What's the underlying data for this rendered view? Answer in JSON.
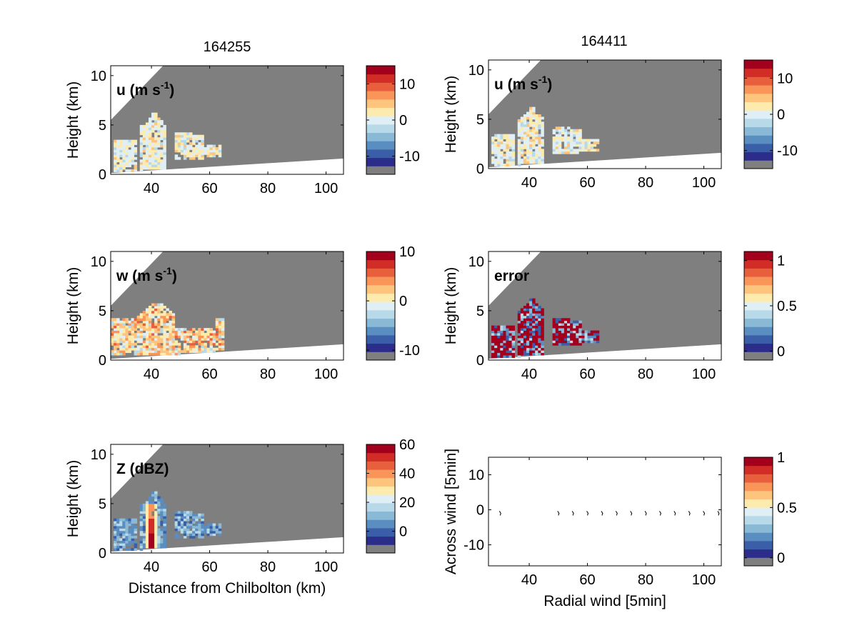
{
  "figure": {
    "column_titles": [
      "164255",
      "164411"
    ]
  },
  "colors": {
    "mask_gray": "#7f7f7f",
    "palette": [
      "#7f7f7f",
      "#2c2c8a",
      "#3a5ea8",
      "#5a8dc0",
      "#8ab9d6",
      "#b7d9e8",
      "#e0eff5",
      "#fdebad",
      "#fdc47e",
      "#f99558",
      "#e85f3d",
      "#d12d26",
      "#a2001d"
    ]
  },
  "chart_data": [
    {
      "id": "u-left",
      "type": "heatmap",
      "title": "164255",
      "label": "u (m s",
      "label_sup": "-1",
      "label_suffix": ")",
      "ylabel": "Height (km)",
      "xlabel": "",
      "xlim": [
        26,
        106
      ],
      "ylim": [
        0,
        11
      ],
      "xticks": [
        40,
        60,
        80,
        100
      ],
      "yticks": [
        0,
        5,
        10
      ],
      "colorbar": {
        "range": [
          -15,
          15
        ],
        "ticks": [
          10,
          0,
          -10
        ]
      },
      "field": "u",
      "frame": 0
    },
    {
      "id": "u-right",
      "type": "heatmap",
      "title": "164411",
      "label": "u (m s",
      "label_sup": "-1",
      "label_suffix": ")",
      "ylabel": "Height (km)",
      "xlabel": "",
      "xlim": [
        26,
        106
      ],
      "ylim": [
        0,
        11
      ],
      "xticks": [
        40,
        60,
        80,
        100
      ],
      "yticks": [
        0,
        5,
        10
      ],
      "colorbar": {
        "range": [
          -15,
          15
        ],
        "ticks": [
          10,
          0,
          -10
        ]
      },
      "field": "u",
      "frame": 1
    },
    {
      "id": "w-left",
      "type": "heatmap",
      "title": "",
      "label": "w (m s",
      "label_sup": "-1",
      "label_suffix": ")",
      "ylabel": "Height (km)",
      "xlabel": "",
      "xlim": [
        26,
        106
      ],
      "ylim": [
        0,
        11
      ],
      "xticks": [
        40,
        60,
        80,
        100
      ],
      "yticks": [
        0,
        5,
        10
      ],
      "colorbar": {
        "range": [
          -12,
          10
        ],
        "ticks": [
          10,
          0,
          -10
        ]
      },
      "field": "w",
      "frame": 0
    },
    {
      "id": "error-right",
      "type": "heatmap",
      "title": "",
      "label": "error",
      "label_sup": "",
      "label_suffix": "",
      "ylabel": "Height (km)",
      "xlabel": "",
      "xlim": [
        26,
        106
      ],
      "ylim": [
        0,
        11
      ],
      "xticks": [
        40,
        60,
        80,
        100
      ],
      "yticks": [
        0,
        5,
        10
      ],
      "colorbar": {
        "range": [
          -0.1,
          1.1
        ],
        "ticks": [
          1,
          0.5,
          0
        ]
      },
      "field": "error",
      "frame": 1
    },
    {
      "id": "z-left",
      "type": "heatmap",
      "title": "",
      "label": "Z (dBZ)",
      "label_sup": "",
      "label_suffix": "",
      "ylabel": "Height (km)",
      "xlabel": "Distance from Chilbolton (km)",
      "xlim": [
        26,
        106
      ],
      "ylim": [
        0,
        11
      ],
      "xticks": [
        40,
        60,
        80,
        100
      ],
      "yticks": [
        0,
        5,
        10
      ],
      "colorbar": {
        "range": [
          -15,
          60
        ],
        "ticks": [
          60,
          40,
          20,
          0
        ]
      },
      "field": "Z",
      "frame": 0
    },
    {
      "id": "wind-right",
      "type": "scatter",
      "title": "",
      "label": "",
      "label_sup": "",
      "label_suffix": "",
      "ylabel": "Across wind [5min]",
      "xlabel": "Radial wind [5min]",
      "xlim": [
        26,
        106
      ],
      "ylim": [
        -16,
        15
      ],
      "xticks": [
        40,
        60,
        80,
        100
      ],
      "yticks": [
        -10,
        0,
        10
      ],
      "colorbar": {
        "range": [
          -0.08,
          1
        ],
        "ticks": [
          1,
          0.5,
          0
        ]
      },
      "points": [
        {
          "x": 30,
          "y": -1
        },
        {
          "x": 50,
          "y": -1
        },
        {
          "x": 55,
          "y": -1
        },
        {
          "x": 60,
          "y": -1
        },
        {
          "x": 65,
          "y": -1
        },
        {
          "x": 70,
          "y": -1
        },
        {
          "x": 75,
          "y": -1
        },
        {
          "x": 80,
          "y": -1
        },
        {
          "x": 85,
          "y": -1
        },
        {
          "x": 90,
          "y": -1
        },
        {
          "x": 95,
          "y": -1
        },
        {
          "x": 100,
          "y": -1
        },
        {
          "x": 105,
          "y": -1
        }
      ]
    }
  ]
}
